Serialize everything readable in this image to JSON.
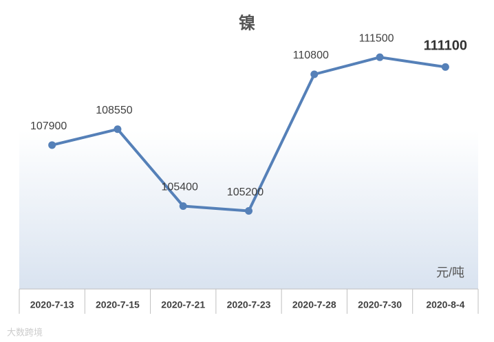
{
  "chart_data": {
    "type": "line",
    "title": "镍",
    "unit": "元/吨",
    "watermark": "大数跨境",
    "categories": [
      "2020-7-13",
      "2020-7-15",
      "2020-7-21",
      "2020-7-23",
      "2020-7-28",
      "2020-7-30",
      "2020-8-4"
    ],
    "series": [
      {
        "name": "镍",
        "color": "#5580b8",
        "values": [
          107900,
          108550,
          105400,
          105200,
          110800,
          111500,
          111100
        ]
      }
    ],
    "ylim": [
      102000,
      113000
    ]
  }
}
